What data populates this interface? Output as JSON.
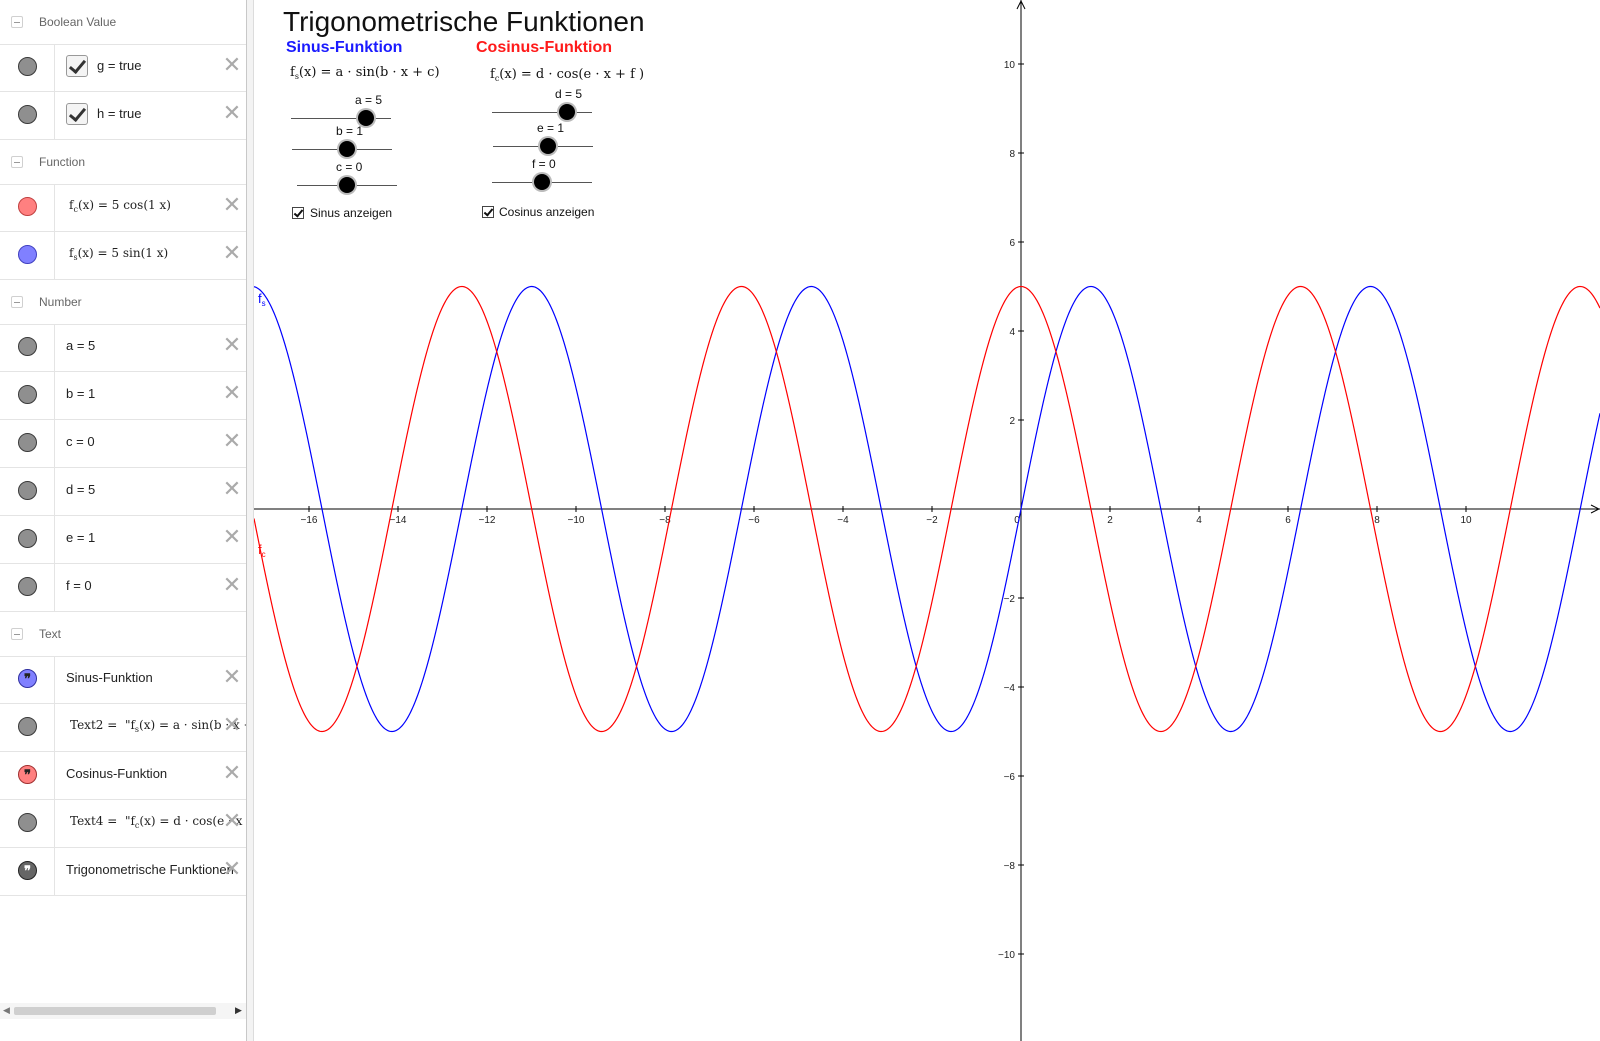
{
  "algebra": {
    "groups": {
      "boolean": "Boolean Value",
      "function": "Function",
      "number": "Number",
      "text": "Text"
    },
    "booleans": [
      {
        "name": "g",
        "eq": "=",
        "value": "true"
      },
      {
        "name": "h",
        "eq": "=",
        "value": "true"
      }
    ],
    "functions": [
      {
        "name": "f",
        "sub": "c",
        "arg": "(x)",
        "def": "5  cos(1 x)",
        "color": "#ff8080"
      },
      {
        "name": "f",
        "sub": "s",
        "arg": "(x)",
        "def": "5  sin(1 x)",
        "color": "#8080ff"
      }
    ],
    "numbers": [
      {
        "text": "a = 5"
      },
      {
        "text": "b = 1"
      },
      {
        "text": "c = 0"
      },
      {
        "text": "d = 5"
      },
      {
        "text": "e = 1"
      },
      {
        "text": "f = 0"
      }
    ],
    "texts": [
      {
        "text": "Sinus-Funktion",
        "marble": "#8080ff"
      },
      {
        "label": "Text2",
        "eq": "=",
        "pre": "\"f",
        "sub": "s",
        "rest": "(x) = a · sin(b · x + c",
        "marble": "#8f8f8f"
      },
      {
        "text": "Cosinus-Funktion",
        "marble": "#ff8080"
      },
      {
        "label": "Text4",
        "eq": "=",
        "pre": "\"f",
        "sub": "c",
        "rest": "(x) = d · cos(e · x + f",
        "marble": "#8f8f8f"
      },
      {
        "text": "Trigonometrische Funktionen",
        "marble": "#666666"
      }
    ],
    "delete_glyph": "✕",
    "quote_glyph": "❞",
    "scroll_left": "◀",
    "scroll_right": "▶"
  },
  "graphics": {
    "title": "Trigonometrische Funktionen",
    "sinus_title": "Sinus-Funktion",
    "cosinus_title": "Cosinus-Funktion",
    "sin_formula": {
      "pre": "f",
      "sub": "s",
      "rest": "(x) = a · sin(b · x + c)"
    },
    "cos_formula": {
      "pre": "f",
      "sub": "c",
      "rest": "(x) = d · cos(e · x + f )"
    },
    "sliders": [
      {
        "label": "a = 5",
        "value": 5,
        "min": -10,
        "max": 10
      },
      {
        "label": "b = 1",
        "value": 1,
        "min": -10,
        "max": 10
      },
      {
        "label": "c = 0",
        "value": 0,
        "min": -10,
        "max": 10
      },
      {
        "label": "d = 5",
        "value": 5,
        "min": -10,
        "max": 10
      },
      {
        "label": "e = 1",
        "value": 1,
        "min": -10,
        "max": 10
      },
      {
        "label": "f = 0",
        "value": 0,
        "min": -10,
        "max": 10
      }
    ],
    "checkbox_sinus": "Sinus anzeigen",
    "checkbox_cosinus": "Cosinus anzeigen",
    "curve_label_sin": {
      "pre": "f",
      "sub": "s"
    },
    "curve_label_cos": {
      "pre": "f",
      "sub": "c"
    },
    "colors": {
      "sin": "#0000ff",
      "cos": "#ff0000",
      "axis": "#000000"
    }
  },
  "chart_data": {
    "type": "line",
    "xlim": [
      -17.3,
      12.2
    ],
    "ylim": [
      -11.4,
      11.4
    ],
    "x_ticks": [
      -16,
      -14,
      -12,
      -10,
      -8,
      -6,
      -4,
      -2,
      0,
      2,
      4,
      6,
      8,
      10
    ],
    "y_ticks": [
      -10,
      -8,
      -6,
      -4,
      -2,
      2,
      4,
      6,
      8,
      10
    ],
    "grid": false,
    "series": [
      {
        "name": "fs",
        "expression": "5 sin(1 x)",
        "amplitude": 5,
        "frequency": 1,
        "phase": 0,
        "color": "#0000ff"
      },
      {
        "name": "fc",
        "expression": "5 cos(1 x)",
        "amplitude": 5,
        "frequency": 1,
        "phase": 0,
        "color": "#ff0000"
      }
    ]
  }
}
